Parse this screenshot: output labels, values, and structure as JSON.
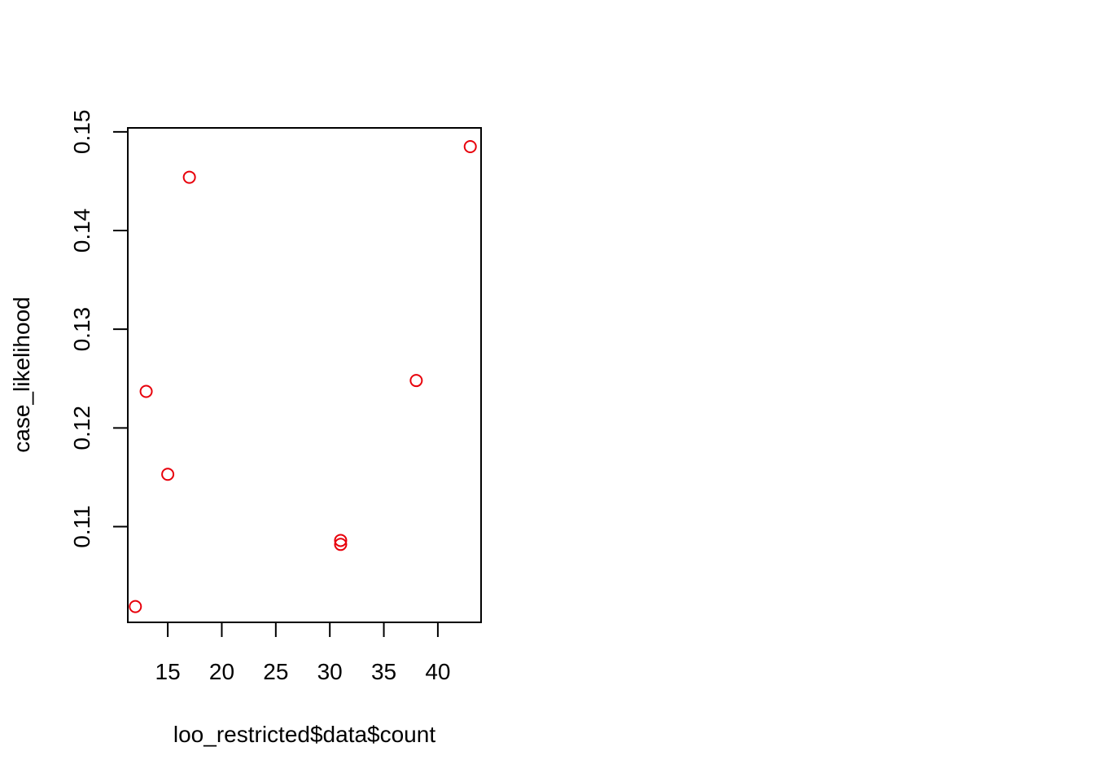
{
  "chart_data": {
    "type": "scatter",
    "title": "",
    "xlabel": "loo_restricted$data$count",
    "ylabel": "case_likelihood",
    "xlim": [
      11.3,
      44.0
    ],
    "ylim": [
      0.1003,
      0.1504
    ],
    "xticks": [
      15,
      20,
      25,
      30,
      35,
      40
    ],
    "xtick_labels": [
      "15",
      "20",
      "25",
      "30",
      "35",
      "40"
    ],
    "yticks": [
      0.11,
      0.12,
      0.13,
      0.14,
      0.15
    ],
    "ytick_labels": [
      "0.11",
      "0.12",
      "0.13",
      "0.14",
      "0.15"
    ],
    "grid": false,
    "legend": "none",
    "marker": "open-circle",
    "color": "#e8000b",
    "points": [
      {
        "x": 12,
        "y": 0.1019
      },
      {
        "x": 13,
        "y": 0.1237
      },
      {
        "x": 15,
        "y": 0.1153
      },
      {
        "x": 17,
        "y": 0.1454
      },
      {
        "x": 31,
        "y": 0.1086
      },
      {
        "x": 31,
        "y": 0.1082
      },
      {
        "x": 38,
        "y": 0.1248
      },
      {
        "x": 43,
        "y": 0.1485
      }
    ]
  }
}
